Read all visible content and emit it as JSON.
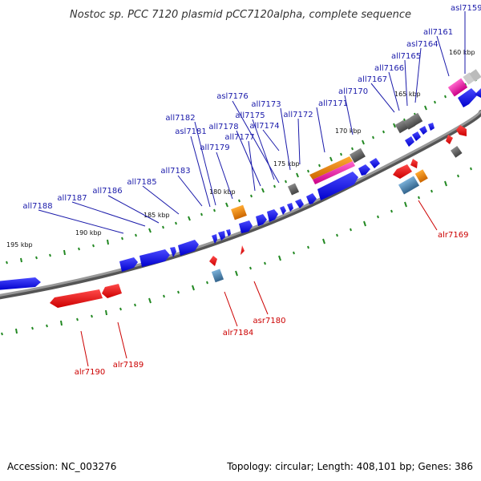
{
  "title": "Nostoc sp. PCC 7120 plasmid pCC7120alpha, complete sequence",
  "footer": {
    "accession": "Accession: NC_003276",
    "summary": "Topology: circular; Length: 408,101 bp; Genes: 386"
  },
  "colors": {
    "forward_label": "#1a1aaa",
    "reverse_label": "#cc0000",
    "forward_gene": "#1010ee",
    "reverse_gene": "#ee1111",
    "backbone": "#888888",
    "tick": "#228822"
  },
  "kbp_labels": [
    {
      "text": "160 kbp"
    },
    {
      "text": "165 kbp"
    },
    {
      "text": "170 kbp"
    },
    {
      "text": "175 kbp"
    },
    {
      "text": "180 kbp"
    },
    {
      "text": "185 kbp"
    },
    {
      "text": "190 kbp"
    },
    {
      "text": "195 kbp"
    }
  ],
  "forward_labels": [
    {
      "text": "asl7159"
    },
    {
      "text": "all7161"
    },
    {
      "text": "asl7164"
    },
    {
      "text": "all7165"
    },
    {
      "text": "all7166"
    },
    {
      "text": "all7167"
    },
    {
      "text": "all7170"
    },
    {
      "text": "all7171"
    },
    {
      "text": "all7172"
    },
    {
      "text": "all7173"
    },
    {
      "text": "asl7176"
    },
    {
      "text": "all7175"
    },
    {
      "text": "all7174"
    },
    {
      "text": "all7178"
    },
    {
      "text": "all7177"
    },
    {
      "text": "all7182"
    },
    {
      "text": "asl7181"
    },
    {
      "text": "all7179"
    },
    {
      "text": "all7183"
    },
    {
      "text": "all7185"
    },
    {
      "text": "all7186"
    },
    {
      "text": "all7187"
    },
    {
      "text": "all7188"
    }
  ],
  "reverse_labels": [
    {
      "text": "alr7169"
    },
    {
      "text": "asr7180"
    },
    {
      "text": "alr7184"
    },
    {
      "text": "alr7189"
    },
    {
      "text": "alr7190"
    }
  ]
}
